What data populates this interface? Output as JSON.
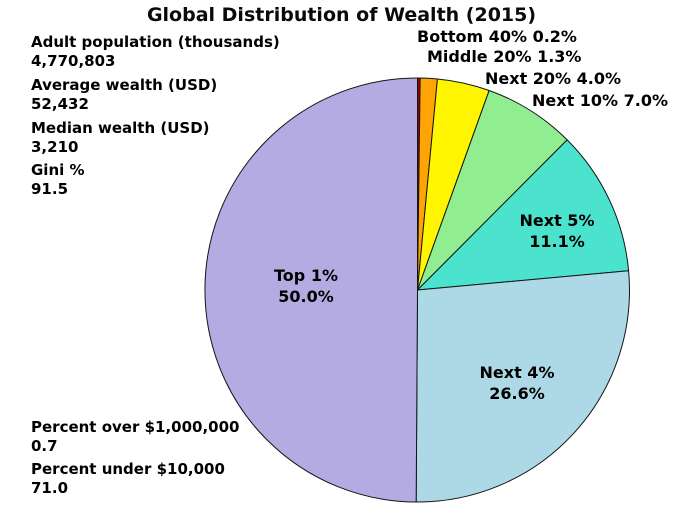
{
  "title": "Global Distribution of Wealth (2015)",
  "stats": [
    {
      "label": "Adult population (thousands)",
      "value": "4,770,803"
    },
    {
      "label": "Average wealth (USD)",
      "value": "52,432"
    },
    {
      "label": "Median wealth (USD)",
      "value": "3,210"
    },
    {
      "label": "Gini %",
      "value": "91.5"
    },
    {
      "label": "Percent over $1,000,000",
      "value": "0.7"
    },
    {
      "label": "Percent under $10,000",
      "value": "71.0"
    }
  ],
  "chart_data": {
    "type": "pie",
    "title": "Global Distribution of Wealth (2015)",
    "start_angle_deg": 90,
    "direction": "clockwise",
    "units": "percent of total wealth",
    "outline_color": "#141414",
    "slices": [
      {
        "label": "Bottom 40%",
        "value": 0.2,
        "color": "#9B0000",
        "label_placement": "outside",
        "callout": "Bottom 40% 0.2%"
      },
      {
        "label": "Middle 20%",
        "value": 1.3,
        "color": "#FFA405",
        "label_placement": "outside",
        "callout": "Middle 20% 1.3%"
      },
      {
        "label": "Next 20%",
        "value": 4.0,
        "color": "#FFF500",
        "label_placement": "outside",
        "callout": "Next 20% 4.0%"
      },
      {
        "label": "Next 10%",
        "value": 7.0,
        "color": "#90EE90",
        "label_placement": "outside",
        "callout": "Next 10% 7.0%"
      },
      {
        "label": "Next 5%",
        "value": 11.1,
        "color": "#4BE3CD",
        "label_placement": "inside",
        "label_lines": [
          "Next 5%",
          "11.1%"
        ]
      },
      {
        "label": "Next 4%",
        "value": 26.6,
        "color": "#ADD8E6",
        "label_placement": "inside",
        "label_lines": [
          "Next 4%",
          "26.6%"
        ]
      },
      {
        "label": "Top 1%",
        "value": 50.0,
        "color": "#B4ABE2",
        "label_placement": "inside",
        "label_lines": [
          "Top 1%",
          "50.0%"
        ]
      }
    ]
  }
}
